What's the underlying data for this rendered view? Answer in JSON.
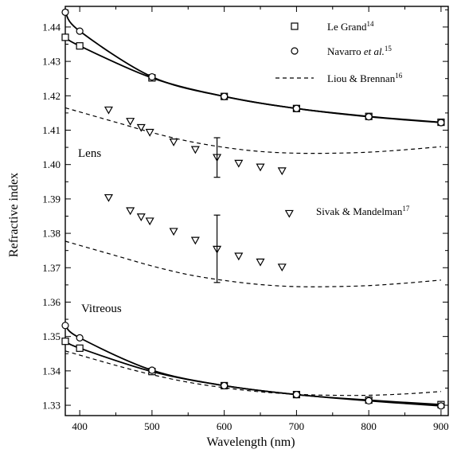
{
  "chart_data": {
    "type": "line",
    "xlabel": "Wavelength (nm)",
    "ylabel": "Refractive index",
    "xlim": [
      380,
      910
    ],
    "ylim": [
      1.327,
      1.446
    ],
    "xticks": [
      "400",
      "500",
      "600",
      "700",
      "800",
      "900"
    ],
    "yticks": [
      "1.33",
      "1.34",
      "1.35",
      "1.36",
      "1.37",
      "1.38",
      "1.39",
      "1.40",
      "1.41",
      "1.42",
      "1.43",
      "1.44"
    ],
    "grid": false,
    "legend_position": "top-right",
    "legend": [
      {
        "text": "Le Grand",
        "sup": "14",
        "marker": "square"
      },
      {
        "text": "Navarro ",
        "italic": "et al.",
        "sup": "15",
        "marker": "circle"
      },
      {
        "text": "Liou & Brennan",
        "sup": "16",
        "marker": "dash"
      }
    ],
    "annotations": [
      {
        "text": "Lens"
      },
      {
        "text": "Vitreous"
      },
      {
        "text": "Sivak & Mandelman",
        "sup": "17"
      }
    ],
    "series": [
      {
        "name": "Le Grand",
        "group": "lens",
        "style": "solid-square",
        "x": [
          380,
          400,
          500,
          600,
          700,
          800,
          900
        ],
        "y": [
          1.437,
          1.4345,
          1.4252,
          1.4198,
          1.4163,
          1.414,
          1.4123
        ]
      },
      {
        "name": "Navarro et al.",
        "group": "lens",
        "style": "solid-circle",
        "x": [
          380,
          400,
          500,
          600,
          700,
          800,
          900
        ],
        "y": [
          1.4443,
          1.4388,
          1.4255,
          1.4198,
          1.4163,
          1.4139,
          1.4122
        ]
      },
      {
        "name": "Liou & Brennan",
        "group": "lens-upper",
        "style": "dashed",
        "x": [
          380,
          450,
          500,
          550,
          600,
          650,
          700,
          750,
          800,
          850,
          900
        ],
        "y": [
          1.4165,
          1.4123,
          1.4093,
          1.4068,
          1.405,
          1.4038,
          1.4033,
          1.4033,
          1.4036,
          1.4043,
          1.4052
        ]
      },
      {
        "name": "Liou & Brennan",
        "group": "lens-lower",
        "style": "dashed",
        "x": [
          380,
          450,
          500,
          550,
          600,
          650,
          700,
          750,
          800,
          850,
          900
        ],
        "y": [
          1.3777,
          1.3735,
          1.3705,
          1.368,
          1.3663,
          1.3651,
          1.3645,
          1.3645,
          1.3648,
          1.3655,
          1.3664
        ]
      },
      {
        "name": "Sivak & Mandelman",
        "group": "lens-upper",
        "style": "triangle-down",
        "x": [
          440,
          470,
          485,
          497,
          530,
          560,
          590,
          620,
          650,
          680
        ],
        "y": [
          1.4158,
          1.4125,
          1.4107,
          1.4093,
          1.4065,
          1.4043,
          1.402,
          1.4003,
          1.3992,
          1.3981
        ]
      },
      {
        "name": "Sivak & Mandelman",
        "group": "lens-lower",
        "style": "triangle-down",
        "x": [
          440,
          470,
          485,
          497,
          530,
          560,
          590,
          620,
          650,
          680,
          690
        ],
        "y": [
          1.3903,
          1.3865,
          1.3847,
          1.3835,
          1.3805,
          1.3779,
          1.3753,
          1.3733,
          1.3716,
          1.3701,
          1.3857
        ]
      },
      {
        "name": "Le Grand",
        "group": "vitreous",
        "style": "solid-square",
        "x": [
          380,
          400,
          500,
          600,
          700,
          800,
          900
        ],
        "y": [
          1.3486,
          1.3466,
          1.3398,
          1.3357,
          1.3331,
          1.3315,
          1.3302
        ]
      },
      {
        "name": "Navarro et al.",
        "group": "vitreous",
        "style": "solid-circle",
        "x": [
          380,
          400,
          500,
          600,
          700,
          800,
          900
        ],
        "y": [
          1.3532,
          1.3496,
          1.3402,
          1.3357,
          1.3331,
          1.3313,
          1.3298
        ]
      },
      {
        "name": "Liou & Brennan",
        "group": "vitreous",
        "style": "dashed",
        "x": [
          380,
          450,
          500,
          550,
          600,
          650,
          700,
          750,
          800,
          850,
          900
        ],
        "y": [
          1.3458,
          1.3416,
          1.3389,
          1.3367,
          1.3351,
          1.3339,
          1.3332,
          1.3329,
          1.3329,
          1.3333,
          1.334
        ]
      }
    ],
    "error_bars": [
      {
        "x": 590,
        "y_low": 1.3963,
        "y_high": 1.4078
      },
      {
        "x": 590,
        "y_low": 1.3657,
        "y_high": 1.3853
      }
    ]
  }
}
